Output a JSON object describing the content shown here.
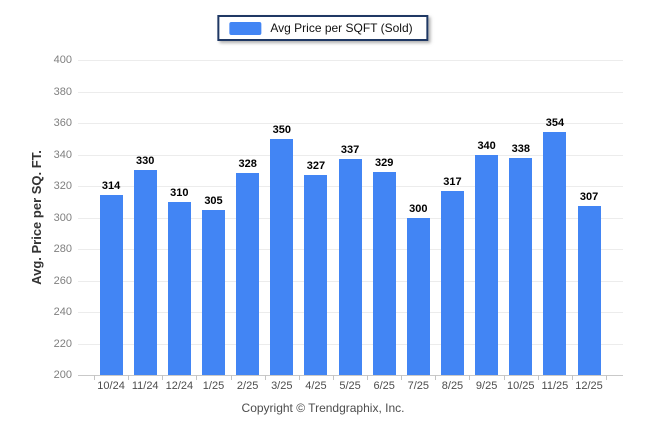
{
  "legend": {
    "label": "Avg Price per SQFT (Sold)"
  },
  "footer": {
    "text": "Copyright © Trendgraphix, Inc."
  },
  "colors": {
    "bar": "#4285f4",
    "legend_border": "#1f3864",
    "gridline": "#ececec",
    "baseline": "#c9c9c9"
  },
  "chart_data": {
    "type": "bar",
    "title": "Avg Price per SQFT (Sold)",
    "categories": [
      "10/24",
      "11/24",
      "12/24",
      "1/25",
      "2/25",
      "3/25",
      "4/25",
      "5/25",
      "6/25",
      "7/25",
      "8/25",
      "9/25",
      "10/25",
      "11/25",
      "12/25"
    ],
    "values": [
      314,
      330,
      310,
      305,
      328,
      350,
      327,
      337,
      329,
      300,
      317,
      340,
      338,
      354,
      307
    ],
    "xlabel": "",
    "ylabel": "Avg. Price per SQ. FT.",
    "ylim": [
      200,
      400
    ],
    "yticks": [
      200,
      220,
      240,
      260,
      280,
      300,
      320,
      340,
      360,
      380,
      400
    ],
    "grid": true,
    "legend_position": "top-center",
    "value_labels": true,
    "bar_color": "#4285f4"
  }
}
